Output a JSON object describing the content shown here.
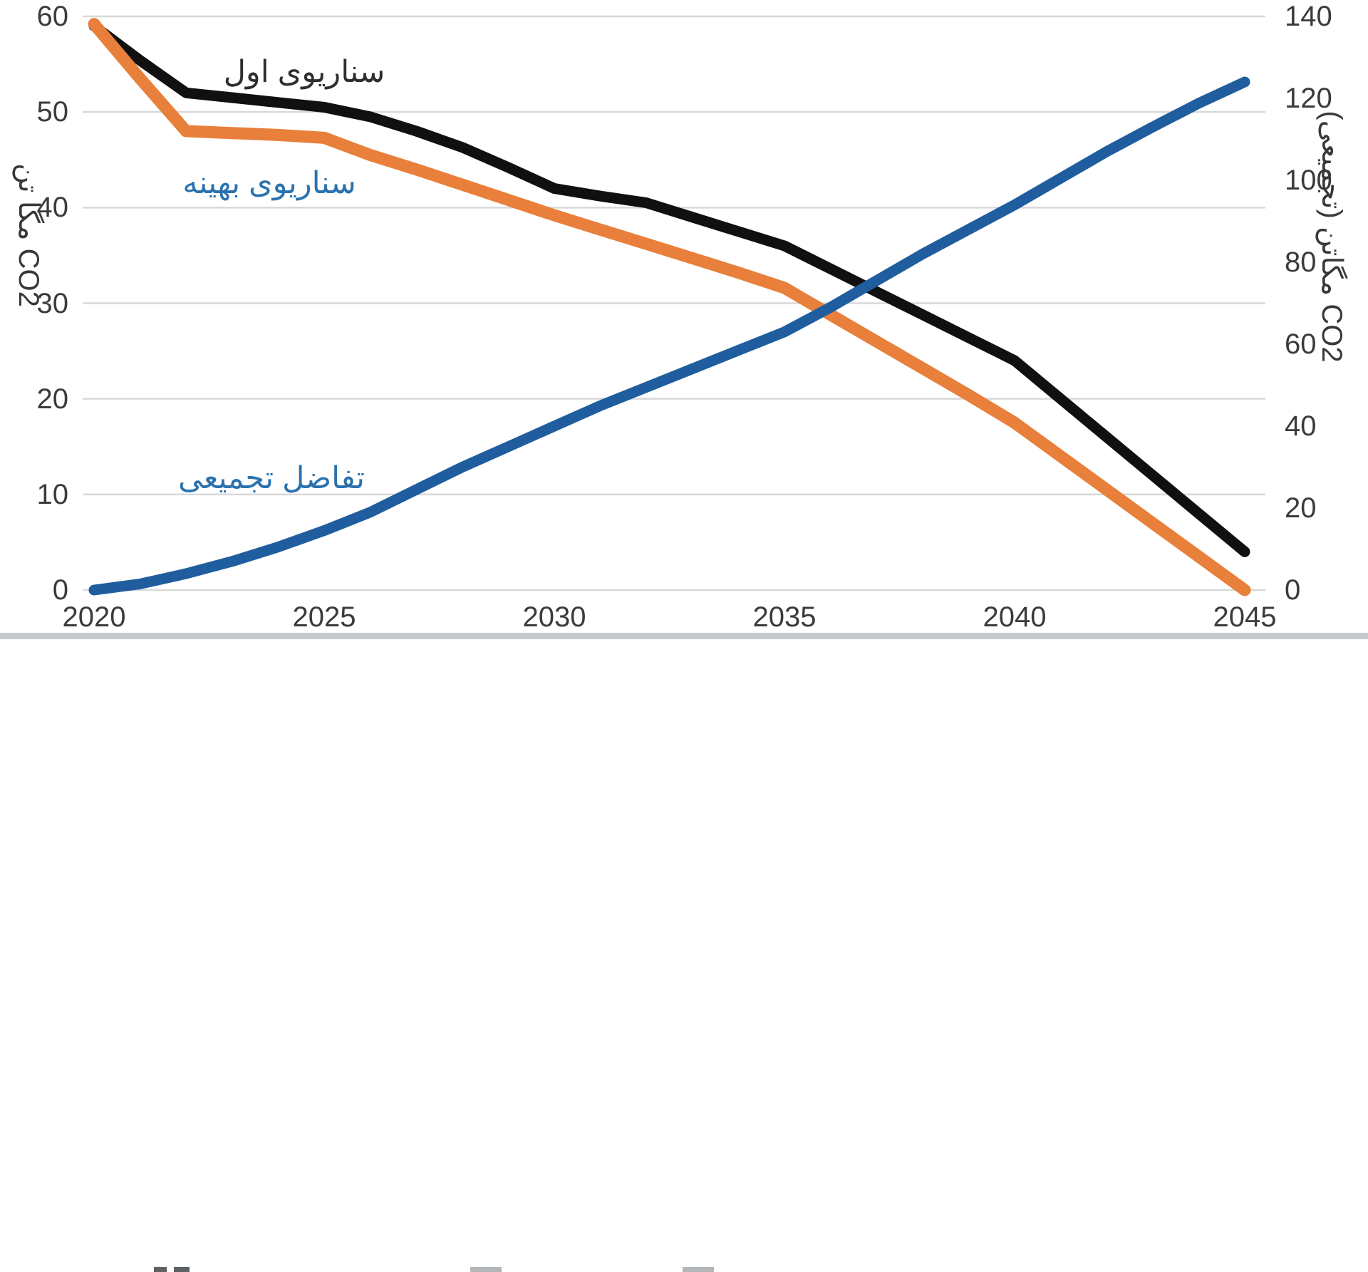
{
  "chart_data": {
    "type": "line",
    "title": "",
    "x_axis": {
      "ticks": [
        "2020",
        "2025",
        "2030",
        "2035",
        "2040",
        "2045"
      ],
      "tick_values": [
        2020,
        2025,
        2030,
        2035,
        2040,
        2045
      ],
      "range": [
        2020,
        2045
      ]
    },
    "y_axis_left": {
      "title": "CO2 مگا تن",
      "ticks": [
        "60",
        "50",
        "40",
        "30",
        "20",
        "10",
        "0"
      ],
      "tick_values": [
        60,
        50,
        40,
        30,
        20,
        10,
        0
      ],
      "range": [
        0,
        60
      ]
    },
    "y_axis_right": {
      "title": "CO2 مگاتن (تجمیعی)",
      "ticks": [
        "140",
        "120",
        "100",
        "80",
        "60",
        "40",
        "20",
        "0"
      ],
      "tick_values": [
        140,
        120,
        100,
        80,
        60,
        40,
        20,
        0
      ],
      "range": [
        0,
        140
      ]
    },
    "grid": {
      "horizontal": true,
      "color": "#d8d8d8"
    },
    "legend_position": "inline-labels",
    "series": [
      {
        "name": "سناریوی اول",
        "axis": "left",
        "color": "#101010",
        "label_color": "#2e2e2e",
        "key_points": [
          [
            2020,
            59
          ],
          [
            2022,
            52
          ],
          [
            2025,
            50.5
          ],
          [
            2030,
            42
          ],
          [
            2035,
            36
          ],
          [
            2040,
            24
          ],
          [
            2045,
            4
          ]
        ],
        "points": [
          [
            2020,
            59
          ],
          [
            2021,
            55.4
          ],
          [
            2022,
            52
          ],
          [
            2023,
            51.5
          ],
          [
            2024,
            51
          ],
          [
            2025,
            50.5
          ],
          [
            2026,
            49.5
          ],
          [
            2027,
            48
          ],
          [
            2028,
            46.3
          ],
          [
            2029,
            44.2
          ],
          [
            2030,
            42
          ],
          [
            2031,
            41.2
          ],
          [
            2032,
            40.5
          ],
          [
            2033,
            39
          ],
          [
            2034,
            37.5
          ],
          [
            2035,
            36
          ],
          [
            2036,
            33.6
          ],
          [
            2037,
            31.2
          ],
          [
            2038,
            28.8
          ],
          [
            2039,
            26.4
          ],
          [
            2040,
            24
          ],
          [
            2041,
            20
          ],
          [
            2042,
            16
          ],
          [
            2043,
            12
          ],
          [
            2044,
            8
          ],
          [
            2045,
            4
          ]
        ]
      },
      {
        "name": "سناریوی بهینه",
        "axis": "left",
        "color": "#E87F3A",
        "label_color": "#2B72AE",
        "key_points": [
          [
            2020,
            59
          ],
          [
            2022,
            48
          ],
          [
            2025,
            47.3
          ],
          [
            2030,
            39
          ],
          [
            2035,
            31.5
          ],
          [
            2040,
            17.5
          ],
          [
            2045,
            0
          ]
        ],
        "points": [
          [
            2020,
            59.2
          ],
          [
            2021,
            53.5
          ],
          [
            2022,
            48
          ],
          [
            2023,
            47.8
          ],
          [
            2024,
            47.6
          ],
          [
            2025,
            47.3
          ],
          [
            2026,
            45.5
          ],
          [
            2027,
            44
          ],
          [
            2028,
            42.4
          ],
          [
            2029,
            40.8
          ],
          [
            2030,
            39.2
          ],
          [
            2031,
            37.7
          ],
          [
            2032,
            36.2
          ],
          [
            2033,
            34.7
          ],
          [
            2034,
            33.2
          ],
          [
            2035,
            31.6
          ],
          [
            2036,
            28.8
          ],
          [
            2037,
            26
          ],
          [
            2038,
            23.2
          ],
          [
            2039,
            20.4
          ],
          [
            2040,
            17.5
          ],
          [
            2041,
            14
          ],
          [
            2042,
            10.5
          ],
          [
            2043,
            7
          ],
          [
            2044,
            3.5
          ],
          [
            2045,
            0
          ]
        ]
      },
      {
        "name": "تفاضل تجمیعی",
        "axis": "right",
        "color": "#1F5D9E",
        "label_color": "#2B72AE",
        "key_points": [
          [
            2020,
            0
          ],
          [
            2025,
            14.5
          ],
          [
            2030,
            40
          ],
          [
            2035,
            63
          ],
          [
            2040,
            94
          ],
          [
            2045,
            124
          ]
        ],
        "points": [
          [
            2020,
            0
          ],
          [
            2021,
            1.5
          ],
          [
            2022,
            4
          ],
          [
            2023,
            7
          ],
          [
            2024,
            10.5
          ],
          [
            2025,
            14.5
          ],
          [
            2026,
            19
          ],
          [
            2027,
            24.5
          ],
          [
            2028,
            30
          ],
          [
            2029,
            35
          ],
          [
            2030,
            40
          ],
          [
            2031,
            45
          ],
          [
            2032,
            49.5
          ],
          [
            2033,
            54
          ],
          [
            2034,
            58.5
          ],
          [
            2035,
            63
          ],
          [
            2036,
            69
          ],
          [
            2037,
            75.5
          ],
          [
            2038,
            82
          ],
          [
            2039,
            88
          ],
          [
            2040,
            94
          ],
          [
            2041,
            100.5
          ],
          [
            2042,
            107
          ],
          [
            2043,
            113
          ],
          [
            2044,
            118.8
          ],
          [
            2045,
            124
          ]
        ]
      }
    ]
  }
}
